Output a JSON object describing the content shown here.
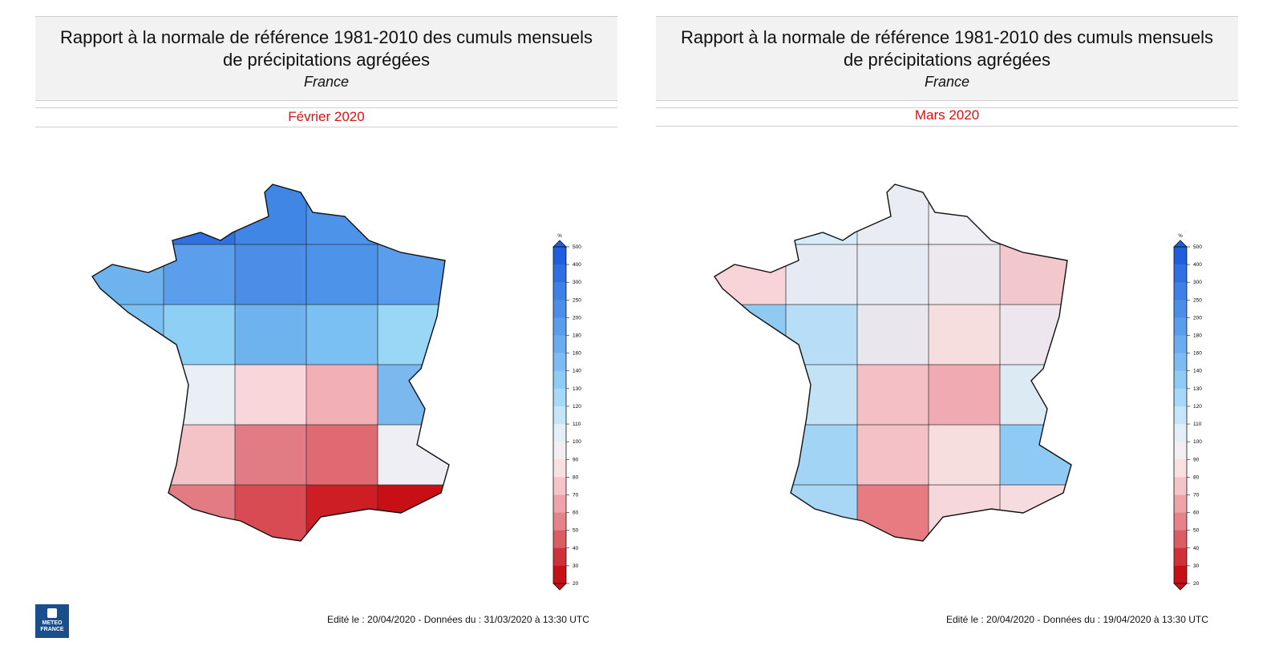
{
  "panels": [
    {
      "title_line1": "Rapport à la normale de référence 1981-2010 des cumuls mensuels",
      "title_line2": "de précipitations agrégées",
      "subtitle": "France",
      "month": "Février 2020",
      "footer": "Edité le : 20/04/2020 - Données du : 31/03/2020 à 13:30 UTC",
      "rows": [
        [
          "#3f86e5",
          "#3070e0",
          "#3f86e5",
          "#4d93ea",
          "#5da0ec"
        ],
        [
          "#6fb3ee",
          "#5b9fec",
          "#4a8ee7",
          "#4d93ea",
          "#5a9dec"
        ],
        [
          "#7cc1f2",
          "#8ecff5",
          "#6fb3ee",
          "#7ac0f2",
          "#9ad6f6"
        ],
        [
          "#d8f0fb",
          "#eaeff6",
          "#f8d6da",
          "#f2b0b6",
          "#7ab8ee"
        ],
        [
          "#f6e0e3",
          "#f3c3c8",
          "#e27c84",
          "#e06a72",
          "#efeef4"
        ],
        [
          "#e9828a",
          "#e37b83",
          "#d84b52",
          "#cc1e24",
          "#c80f15"
        ]
      ],
      "corsica_color": "#c80f15",
      "colorbar": {
        "unit": "%",
        "labels": [
          "500",
          "400",
          "300",
          "250",
          "200",
          "180",
          "160",
          "140",
          "130",
          "120",
          "110",
          "100",
          "90",
          "80",
          "70",
          "60",
          "50",
          "40",
          "30",
          "20"
        ],
        "colors": [
          "#1f5fdf",
          "#2e6fe1",
          "#3d80e6",
          "#4a8ee9",
          "#5a9dec",
          "#6babf0",
          "#7cbcf3",
          "#8ecbf5",
          "#a6d9f7",
          "#c4e6f8",
          "#e3eef6",
          "#f3eef1",
          "#f8dfe2",
          "#f4c4c8",
          "#eea3a9",
          "#e6828a",
          "#dc5c64",
          "#d03038",
          "#c41016"
        ]
      }
    },
    {
      "title_line1": "Rapport à la normale de référence 1981-2010 des cumuls mensuels",
      "title_line2": "de précipitations agrégées",
      "subtitle": "France",
      "month": "Mars 2020",
      "footer": "Edité le : 20/04/2020 - Données du : 19/04/2020 à 13:30 UTC",
      "rows": [
        [
          "#e2eef6",
          "#d6ecfa",
          "#e9ecf2",
          "#eeeef4",
          "#f0eef2"
        ],
        [
          "#f8d3d8",
          "#e6eaf2",
          "#e6eaf2",
          "#ede8ee",
          "#f2c8cc"
        ],
        [
          "#8fcaf3",
          "#b8def7",
          "#e9e6ee",
          "#f6dede",
          "#eee6ee"
        ],
        [
          "#7bbdf2",
          "#c4e2f6",
          "#f4c0c6",
          "#f0aab2",
          "#dceaf4"
        ],
        [
          "#79bcf1",
          "#a2d4f5",
          "#f3c1c6",
          "#f6dede",
          "#8ecaf4"
        ],
        [
          "#78bcf1",
          "#a8d7f6",
          "#e87a82",
          "#f6d8dc",
          "#f6dcdf"
        ]
      ],
      "corsica_color": "#d6ecfa",
      "colorbar": {
        "unit": "%",
        "labels": [
          "500",
          "400",
          "300",
          "250",
          "200",
          "180",
          "160",
          "140",
          "130",
          "120",
          "110",
          "100",
          "90",
          "80",
          "70",
          "60",
          "50",
          "40",
          "30",
          "20"
        ],
        "colors": [
          "#1f5fdf",
          "#2e6fe1",
          "#3d80e6",
          "#4a8ee9",
          "#5a9dec",
          "#6babf0",
          "#7cbcf3",
          "#8ecbf5",
          "#a6d9f7",
          "#c4e6f8",
          "#e3eef6",
          "#f3eef1",
          "#f8dfe2",
          "#f4c4c8",
          "#eea3a9",
          "#e6828a",
          "#dc5c64",
          "#d03038",
          "#c41016"
        ]
      }
    }
  ],
  "logo_text_line1": "METEO",
  "logo_text_line2": "FRANCE"
}
